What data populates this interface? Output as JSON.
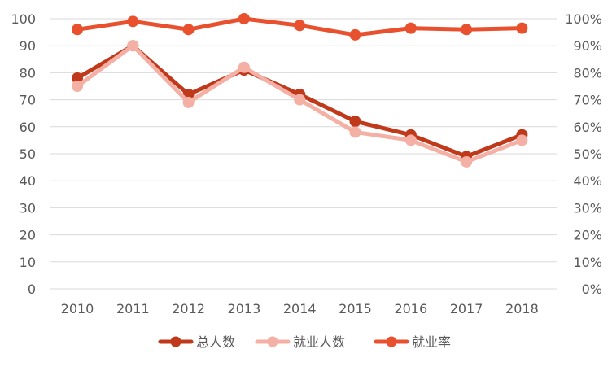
{
  "chart_data": {
    "type": "line",
    "categories": [
      "2010",
      "2011",
      "2012",
      "2013",
      "2014",
      "2015",
      "2016",
      "2017",
      "2018"
    ],
    "left_axis": {
      "ylim": [
        0,
        100
      ],
      "ticks": [
        "0",
        "10",
        "20",
        "30",
        "40",
        "50",
        "60",
        "70",
        "80",
        "90",
        "100"
      ]
    },
    "right_axis": {
      "ylim": [
        0,
        100
      ],
      "ticks": [
        "0%",
        "10%",
        "20%",
        "30%",
        "40%",
        "50%",
        "60%",
        "70%",
        "80%",
        "90%",
        "100%"
      ]
    },
    "grid": true,
    "legend_position": "bottom",
    "series": [
      {
        "name": "总人数",
        "axis": "left",
        "color": "#c0391b",
        "values": [
          78,
          90,
          72,
          81,
          72,
          62,
          57,
          49,
          57
        ]
      },
      {
        "name": "就业人数",
        "axis": "left",
        "color": "#f4b0a4",
        "values": [
          75,
          90,
          69,
          82,
          70,
          58,
          55,
          47,
          55
        ]
      },
      {
        "name": "就业率",
        "axis": "right",
        "color": "#e8502e",
        "values": [
          96,
          99,
          96,
          100,
          97.5,
          94,
          96.5,
          96,
          96.5
        ]
      }
    ]
  }
}
